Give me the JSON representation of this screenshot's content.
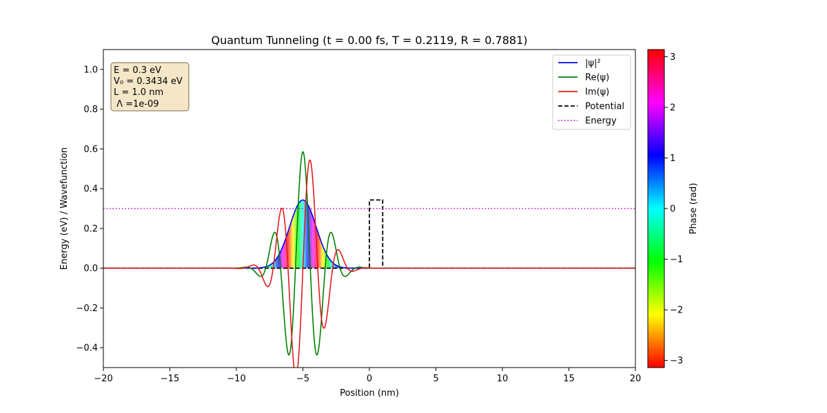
{
  "chart_data": {
    "type": "line",
    "title": "Quantum Tunneling (t = 0.00 fs, T = 0.2119, R = 0.7881)",
    "xlabel": "Position (nm)",
    "ylabel": "Energy (eV) / Wavefunction",
    "xlim": [
      -20,
      20
    ],
    "ylim": [
      -0.5,
      1.1
    ],
    "xticks": [
      -20,
      -15,
      -10,
      -5,
      0,
      5,
      10,
      15,
      20
    ],
    "xtick_labels": [
      "−20",
      "−15",
      "−10",
      "−5",
      "0",
      "5",
      "10",
      "15",
      "20"
    ],
    "yticks": [
      -0.4,
      -0.2,
      0.0,
      0.2,
      0.4,
      0.6,
      0.8,
      1.0
    ],
    "ytick_labels": [
      "−0.4",
      "−0.2",
      "0.0",
      "0.2",
      "0.4",
      "0.6",
      "0.8",
      "1.0"
    ],
    "grid": false,
    "legend_position": "top-right",
    "info_box": [
      "E = 0.3 eV",
      "V₀ = 0.3434 eV",
      "L = 1.0 nm",
      " Λ =1e-09"
    ],
    "wavepacket": {
      "center": -5.0,
      "peak_density": 0.343,
      "sigma": 1.0,
      "wave_number": 2.81
    },
    "energy": 0.3,
    "potential": {
      "V0": 0.3434,
      "x_start": 0.0,
      "x_end": 1.0
    },
    "series": [
      {
        "name": "|ψ|²",
        "color": "#0000ff",
        "style": "solid",
        "marker": "line"
      },
      {
        "name": "Re(ψ)",
        "color": "#008000",
        "style": "solid",
        "marker": "line"
      },
      {
        "name": "Im(ψ)",
        "color": "#e41a1c",
        "style": "solid",
        "marker": "line"
      },
      {
        "name": "Potential",
        "color": "#000000",
        "style": "dashed",
        "marker": "line"
      },
      {
        "name": "Energy",
        "color": "#bf00bf",
        "style": "dotted",
        "marker": "line"
      }
    ],
    "colorbar": {
      "label": "Phase (rad)",
      "range": [
        -3.14159,
        3.14159
      ],
      "ticks": [
        3,
        2,
        1,
        0,
        -1,
        -2,
        -3
      ],
      "tick_labels": [
        "3",
        "2",
        "1",
        "0",
        "−1",
        "−2",
        "−3"
      ],
      "colormap": "hsv"
    }
  }
}
